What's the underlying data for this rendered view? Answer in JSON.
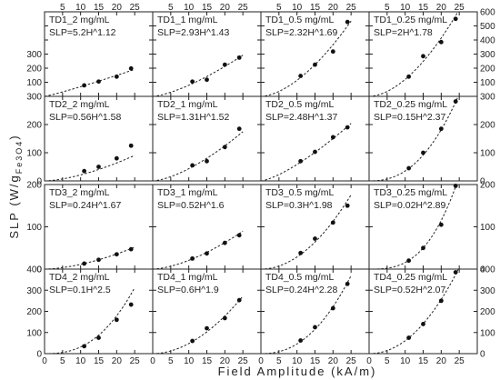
{
  "chart_data": {
    "type": "scatter",
    "xlabel": "Field Amplitude (kA/m)",
    "ylabel_main": "SLP (W/g",
    "ylabel_sub": "Fe3O4",
    "ylabel_close": ")",
    "xlim": [
      0,
      30
    ],
    "x_ticks": [
      0,
      5,
      10,
      15,
      20,
      25
    ],
    "x_tick_labels": [
      "0",
      "5",
      "10",
      "15",
      "20",
      "25"
    ],
    "rows": [
      {
        "ylim": [
          0,
          600
        ],
        "ticks": [
          0,
          100,
          200,
          300,
          400,
          500,
          600
        ],
        "tick_labels_left": [
          "",
          "100",
          "200",
          "300",
          "",
          "",
          ""
        ],
        "tick_labels_right": [
          "",
          "100",
          "200",
          "300",
          "400",
          "500",
          "600"
        ]
      },
      {
        "ylim": [
          0,
          300
        ],
        "ticks": [
          0,
          100,
          200,
          300
        ],
        "tick_labels_left": [
          "0",
          "100",
          "200",
          "300"
        ],
        "tick_labels_right": [
          "0",
          "100",
          "200",
          "300"
        ]
      },
      {
        "ylim": [
          0,
          200
        ],
        "ticks": [
          0,
          100,
          200
        ],
        "tick_labels_left": [
          "0",
          "100",
          "200"
        ],
        "tick_labels_right": [
          "0",
          "100",
          "200"
        ]
      },
      {
        "ylim": [
          0,
          400
        ],
        "ticks": [
          0,
          100,
          200,
          300,
          400
        ],
        "tick_labels_left": [
          "0",
          "100",
          "200",
          "300",
          "400"
        ],
        "tick_labels_right": [
          "0",
          "100",
          "200",
          "300",
          "400"
        ]
      }
    ],
    "panels": [
      {
        "title": "TD1_2 mg/mL",
        "equation": "SLP=5.2H^1.12",
        "a": 5.2,
        "b": 1.12,
        "x": [
          11,
          15,
          20,
          24
        ],
        "y": [
          78,
          105,
          140,
          198
        ]
      },
      {
        "title": "TD1_1 mg/mL",
        "equation": "SLP=2.93H^1.43",
        "a": 2.93,
        "b": 1.43,
        "x": [
          11,
          15,
          20,
          24
        ],
        "y": [
          105,
          118,
          225,
          275
        ]
      },
      {
        "title": "TD1_0.5 mg/mL",
        "equation": "SLP=2.32H^1.69",
        "a": 2.32,
        "b": 1.69,
        "x": [
          11,
          15,
          20,
          24
        ],
        "y": [
          145,
          225,
          318,
          528
        ]
      },
      {
        "title": "TD1_0.25 mg/mL",
        "equation": "SLP=2H^1.78",
        "a": 2.0,
        "b": 1.78,
        "x": [
          11,
          15,
          20,
          24
        ],
        "y": [
          140,
          285,
          385,
          550
        ]
      },
      {
        "title": "TD2_2 mg/mL",
        "equation": "SLP=0.56H^1.58",
        "a": 0.56,
        "b": 1.58,
        "x": [
          11,
          15,
          20,
          24
        ],
        "y": [
          35,
          50,
          80,
          125
        ]
      },
      {
        "title": "TD2_1 mg/mL",
        "equation": "SLP=1.31H^1.52",
        "a": 1.31,
        "b": 1.52,
        "x": [
          11,
          15,
          20,
          24
        ],
        "y": [
          55,
          70,
          120,
          185
        ]
      },
      {
        "title": "TD2_0.5 mg/mL",
        "equation": "SLP=2.48H^1.37",
        "a": 2.48,
        "b": 1.37,
        "x": [
          11,
          15,
          20,
          24
        ],
        "y": [
          70,
          103,
          155,
          190
        ]
      },
      {
        "title": "TD2_0.25 mg/mL",
        "equation": "SLP=0.15H^2.37",
        "a": 0.15,
        "b": 2.37,
        "x": [
          11,
          15,
          20,
          24
        ],
        "y": [
          45,
          100,
          185,
          282
        ]
      },
      {
        "title": "TD3_2 mg/mL",
        "equation": "SLP=0.24H^1.67",
        "a": 0.24,
        "b": 1.67,
        "x": [
          11,
          15,
          20,
          24
        ],
        "y": [
          13,
          22,
          35,
          47
        ]
      },
      {
        "title": "TD3_1 mg/mL",
        "equation": "SLP=0.52H^1.6",
        "a": 0.52,
        "b": 1.6,
        "x": [
          11,
          15,
          20,
          24
        ],
        "y": [
          25,
          37,
          62,
          80
        ]
      },
      {
        "title": "TD3_0.5 mg/mL",
        "equation": "SLP=0.3H^1.98",
        "a": 0.3,
        "b": 1.98,
        "x": [
          11,
          15,
          20,
          24
        ],
        "y": [
          38,
          72,
          110,
          150
        ]
      },
      {
        "title": "TD3_0.25 mg/mL",
        "equation": "SLP=0.02H^2.89",
        "a": 0.02,
        "b": 2.89,
        "x": [
          11,
          15,
          20,
          24
        ],
        "y": [
          20,
          50,
          105,
          197
        ]
      },
      {
        "title": "TD4_2 mg/mL",
        "equation": "SLP=0.1H^2.5",
        "a": 0.1,
        "b": 2.5,
        "x": [
          11,
          15,
          20,
          24
        ],
        "y": [
          35,
          75,
          160,
          232
        ]
      },
      {
        "title": "TD4_1 mg/mL",
        "equation": "SLP=0.6H^1.9",
        "a": 0.6,
        "b": 1.9,
        "x": [
          11,
          15,
          20,
          24
        ],
        "y": [
          60,
          120,
          168,
          253
        ]
      },
      {
        "title": "TD4_0.5 mg/mL",
        "equation": "SLP=0.24H^2.28",
        "a": 0.24,
        "b": 2.28,
        "x": [
          11,
          15,
          20,
          24
        ],
        "y": [
          62,
          125,
          215,
          330
        ]
      },
      {
        "title": "TD4_0.25 mg/mL",
        "equation": "SLP=0.52H^2.07",
        "a": 0.52,
        "b": 2.07,
        "x": [
          11,
          15,
          20,
          24
        ],
        "y": [
          75,
          140,
          250,
          385
        ]
      }
    ]
  }
}
